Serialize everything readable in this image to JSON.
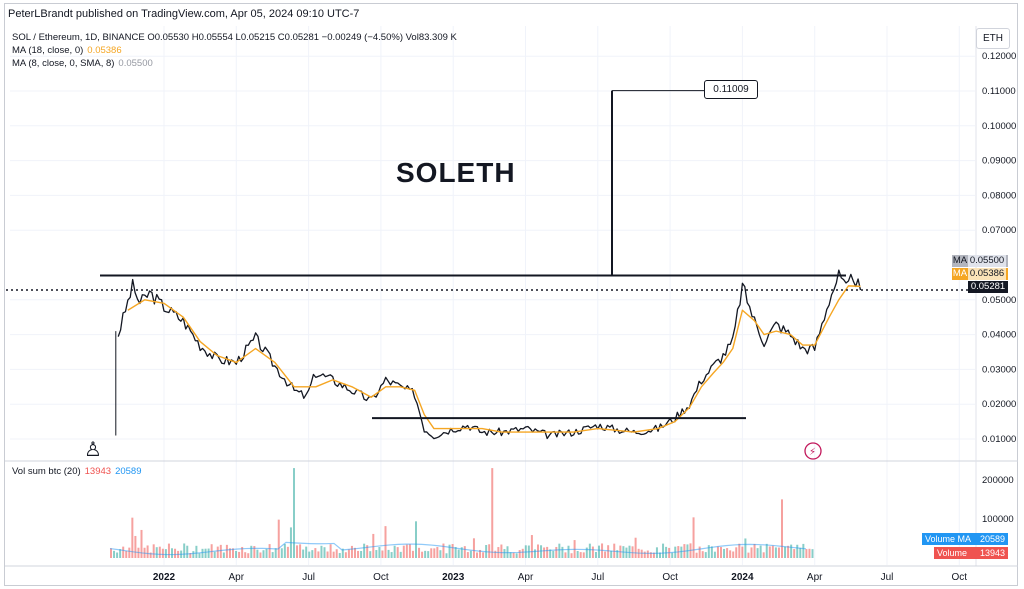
{
  "header": {
    "publish_line": "PeterLBrandt published on TradingView.com, Apr 05, 2024 09:10 UTC-7",
    "symbol_line": "SOL / Ethereum, 1D, BINANCE  O0.05530  H0.05554  L0.05215  C0.05281  −0.00249 (−4.50%)  Vol83.309 K",
    "ma18_label": "MA (18, close, 0)",
    "ma18_value": "0.05386",
    "ma8_label": "MA (8, close, 0, SMA, 8)",
    "ma8_value": "0.05500"
  },
  "currency_button": "ETH",
  "annotations": {
    "title_text": "SOLETH",
    "callout_value": "0.11009"
  },
  "price_tags": {
    "ma8": {
      "label": "MA",
      "value": "0.05500"
    },
    "ma18": {
      "label": "MA",
      "value": "0.05386"
    },
    "last": {
      "value": "0.05281"
    }
  },
  "volume_pane": {
    "label": "Vol sum btc (20)",
    "value_volume": "13943",
    "value_ma": "20589",
    "tag_ma": {
      "label": "Volume MA",
      "value": "20589"
    },
    "tag_volume": {
      "label": "Volume",
      "value": "13943"
    }
  },
  "colors": {
    "price": "#131722",
    "ma18": "#f5a623",
    "ma8": "#9598a1",
    "last_tag": "#131722",
    "volume_ma": "#2196f3",
    "volume": "#ef5350",
    "up_vol": "#26a69a",
    "down_vol": "#ef5350"
  },
  "chart_data": {
    "type": "line",
    "title": "SOLETH",
    "price_axis": {
      "ticks": [
        "0.12000",
        "0.11000",
        "0.10000",
        "0.09000",
        "0.08000",
        "0.07000",
        "0.05000",
        "0.04000",
        "0.03000",
        "0.02000",
        "0.01000"
      ],
      "tick_values": [
        0.12,
        0.11,
        0.1,
        0.09,
        0.08,
        0.07,
        0.05,
        0.04,
        0.03,
        0.02,
        0.01
      ],
      "range": [
        0.0,
        0.12
      ]
    },
    "volume_axis": {
      "ticks": [
        "200000",
        "100000"
      ],
      "tick_values": [
        200000,
        100000
      ],
      "range": [
        0,
        260000
      ]
    },
    "time_axis": {
      "labels": [
        "2022",
        "Apr",
        "Jul",
        "Oct",
        "2023",
        "Apr",
        "Jul",
        "Oct",
        "2024",
        "Apr",
        "Jul",
        "Oct"
      ],
      "months": [
        0,
        3,
        6,
        9,
        12,
        15,
        18,
        21,
        24,
        27,
        30,
        33
      ]
    },
    "series": [
      {
        "name": "SOL / Ethereum",
        "x_months": [
          -1.9,
          -1.6,
          -1.3,
          -1.0,
          -0.6,
          0,
          0.8,
          1.5,
          2.2,
          3.0,
          3.8,
          4.6,
          5.4,
          5.9,
          6.3,
          7.0,
          7.8,
          8.6,
          9.2,
          9.8,
          10.4,
          10.8,
          11.2,
          11.6,
          12.0,
          12.6,
          13.2,
          14.0,
          15.0,
          16.0,
          17.0,
          18.0,
          18.6,
          19.5,
          20.5,
          21.2,
          21.8,
          22.3,
          22.8,
          23.2,
          23.6,
          24.0,
          24.5,
          24.9,
          25.4,
          26.0,
          26.5,
          27.0,
          27.6,
          28.0,
          28.3,
          28.6,
          28.9
        ],
        "y": [
          0.04,
          0.047,
          0.054,
          0.049,
          0.052,
          0.048,
          0.044,
          0.037,
          0.033,
          0.032,
          0.039,
          0.031,
          0.024,
          0.022,
          0.029,
          0.027,
          0.024,
          0.021,
          0.027,
          0.025,
          0.023,
          0.013,
          0.011,
          0.012,
          0.013,
          0.014,
          0.012,
          0.012,
          0.013,
          0.011,
          0.012,
          0.014,
          0.013,
          0.012,
          0.013,
          0.016,
          0.02,
          0.027,
          0.031,
          0.034,
          0.038,
          0.054,
          0.044,
          0.038,
          0.043,
          0.04,
          0.036,
          0.036,
          0.05,
          0.057,
          0.053,
          0.057,
          0.0528
        ]
      },
      {
        "name": "MA (18, close, 0)",
        "x_months": [
          -1.5,
          -0.8,
          0,
          0.8,
          1.5,
          2.2,
          3.0,
          3.8,
          4.6,
          5.4,
          6.3,
          7.0,
          7.8,
          8.6,
          9.2,
          9.8,
          10.4,
          10.8,
          11.2,
          12.0,
          13.2,
          14.0,
          15.0,
          16.0,
          17.0,
          18.0,
          19.5,
          20.5,
          21.2,
          21.8,
          22.3,
          22.8,
          23.2,
          23.6,
          24.0,
          24.5,
          24.9,
          25.4,
          26.0,
          26.5,
          27.0,
          27.6,
          28.0,
          28.4,
          28.9
        ],
        "y": [
          0.047,
          0.05,
          0.049,
          0.045,
          0.038,
          0.034,
          0.032,
          0.036,
          0.032,
          0.025,
          0.025,
          0.027,
          0.025,
          0.022,
          0.025,
          0.025,
          0.024,
          0.017,
          0.013,
          0.013,
          0.013,
          0.012,
          0.012,
          0.012,
          0.012,
          0.013,
          0.012,
          0.013,
          0.015,
          0.019,
          0.025,
          0.029,
          0.032,
          0.036,
          0.047,
          0.044,
          0.04,
          0.041,
          0.04,
          0.037,
          0.037,
          0.045,
          0.05,
          0.054,
          0.05386
        ]
      }
    ],
    "levels": [
      {
        "name": "Upper horizontal line",
        "value": 0.057
      },
      {
        "name": "Lower horizontal line",
        "value": 0.016
      },
      {
        "name": "Vertical projection top",
        "value": 0.11009
      }
    ],
    "grid": true
  }
}
